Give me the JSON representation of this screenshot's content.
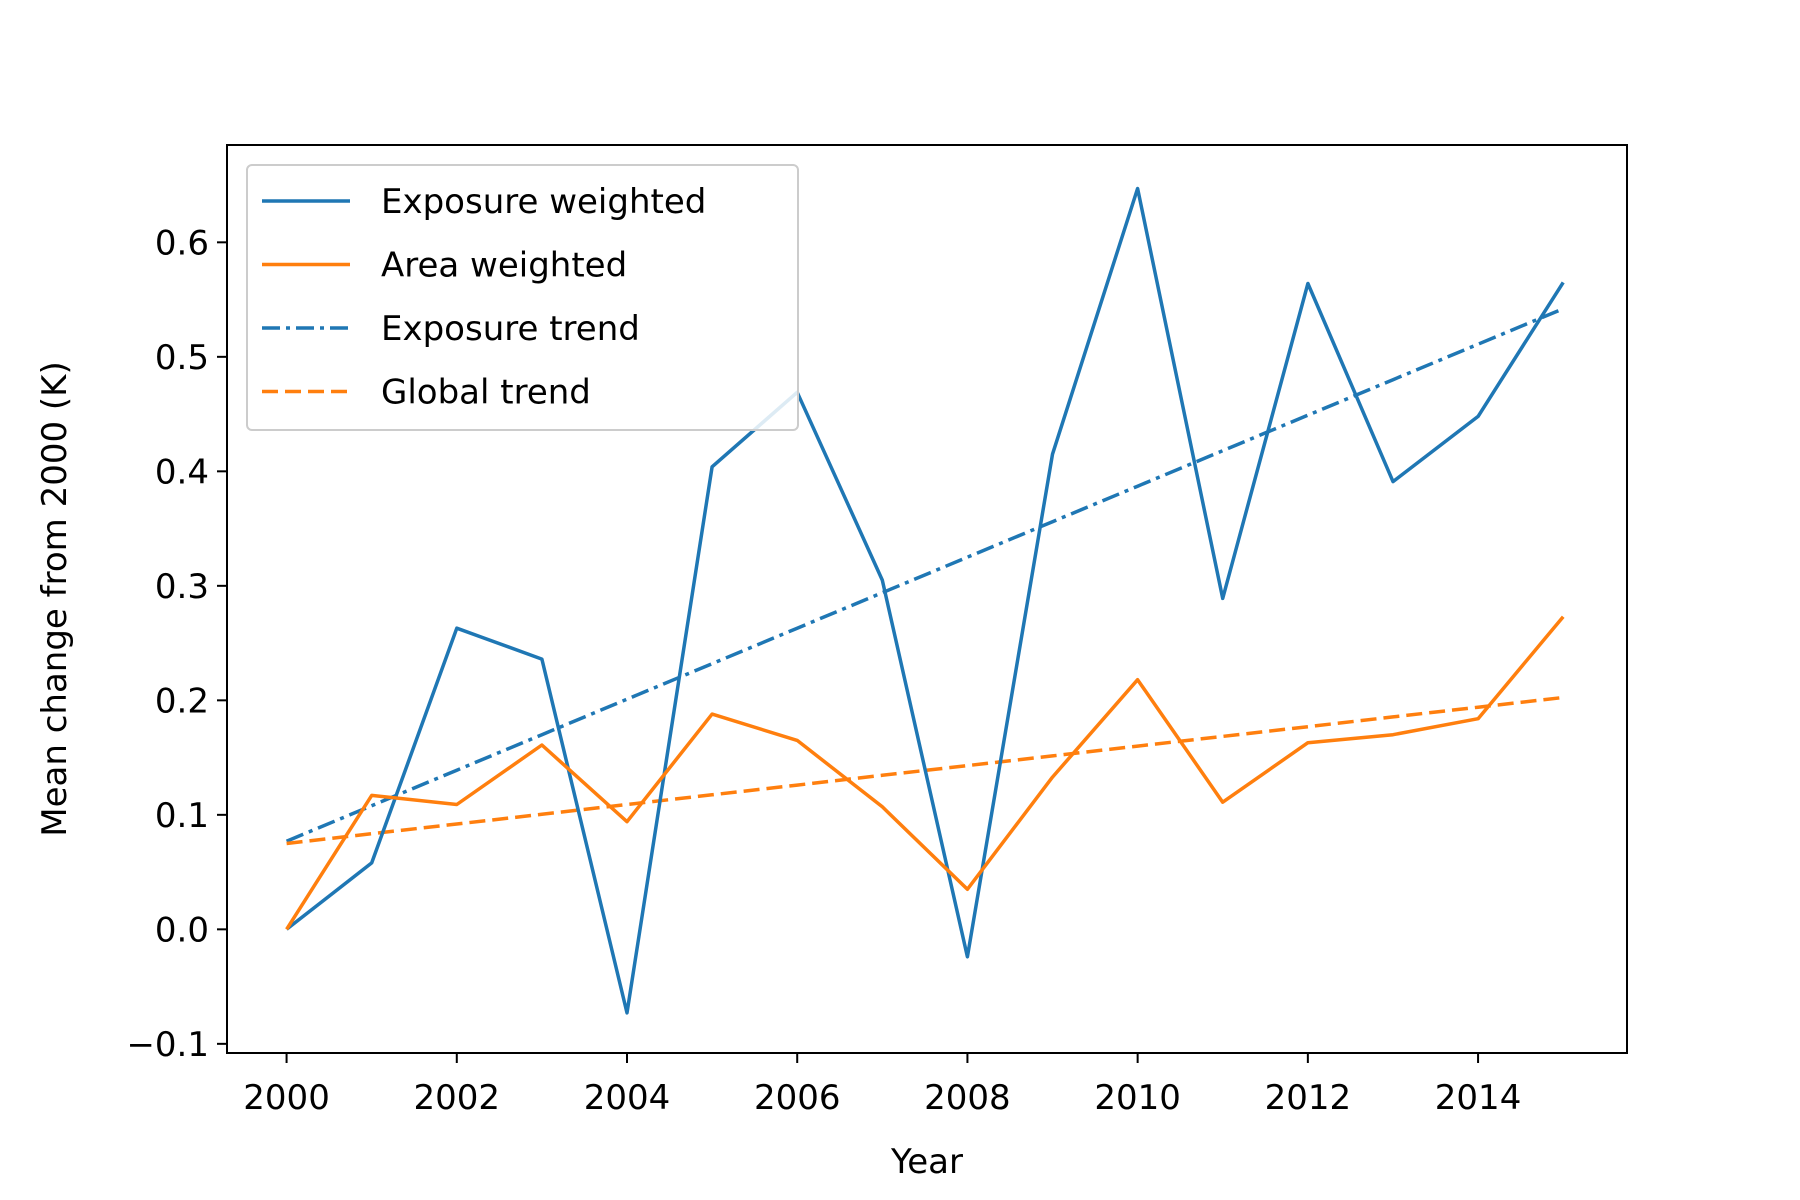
{
  "chart_data": {
    "type": "line",
    "title": "",
    "xlabel": "Year",
    "ylabel": "Mean change from 2000 (K)",
    "x": [
      2000,
      2001,
      2002,
      2003,
      2004,
      2005,
      2006,
      2007,
      2008,
      2009,
      2010,
      2011,
      2012,
      2013,
      2014,
      2015
    ],
    "xlim": [
      1999.3,
      2015.75
    ],
    "ylim": [
      -0.108,
      0.685
    ],
    "xticks": [
      2000,
      2002,
      2004,
      2006,
      2008,
      2010,
      2012,
      2014
    ],
    "xtick_labels": [
      "2000",
      "2002",
      "2004",
      "2006",
      "2008",
      "2010",
      "2012",
      "2014"
    ],
    "yticks": [
      -0.1,
      0.0,
      0.1,
      0.2,
      0.3,
      0.4,
      0.5,
      0.6
    ],
    "ytick_labels": [
      "−0.1",
      "0.0",
      "0.1",
      "0.2",
      "0.3",
      "0.4",
      "0.5",
      "0.6"
    ],
    "grid": false,
    "legend_position": "upper-left",
    "series": [
      {
        "name": "Exposure weighted",
        "color": "#1f77b4",
        "style": "solid",
        "values": [
          0.0,
          0.058,
          0.263,
          0.236,
          -0.073,
          0.404,
          0.469,
          0.305,
          -0.024,
          0.415,
          0.647,
          0.289,
          0.564,
          0.391,
          0.448,
          0.565
        ]
      },
      {
        "name": "Area weighted",
        "color": "#ff7f0e",
        "style": "solid",
        "values": [
          0.0,
          0.117,
          0.109,
          0.161,
          0.094,
          0.188,
          0.165,
          0.107,
          0.035,
          0.133,
          0.218,
          0.111,
          0.163,
          0.17,
          0.184,
          0.273
        ]
      },
      {
        "name": "Exposure trend",
        "color": "#1f77b4",
        "style": "dashdot",
        "values": [
          0.077,
          0.108,
          0.139,
          0.17,
          0.201,
          0.232,
          0.263,
          0.294,
          0.325,
          0.356,
          0.387,
          0.418,
          0.449,
          0.48,
          0.511,
          0.542
        ]
      },
      {
        "name": "Global trend",
        "color": "#ff7f0e",
        "style": "dashed",
        "values": [
          0.075,
          0.0835,
          0.092,
          0.1005,
          0.109,
          0.1175,
          0.126,
          0.1345,
          0.143,
          0.1515,
          0.16,
          0.1685,
          0.177,
          0.1855,
          0.194,
          0.2025
        ]
      }
    ]
  }
}
